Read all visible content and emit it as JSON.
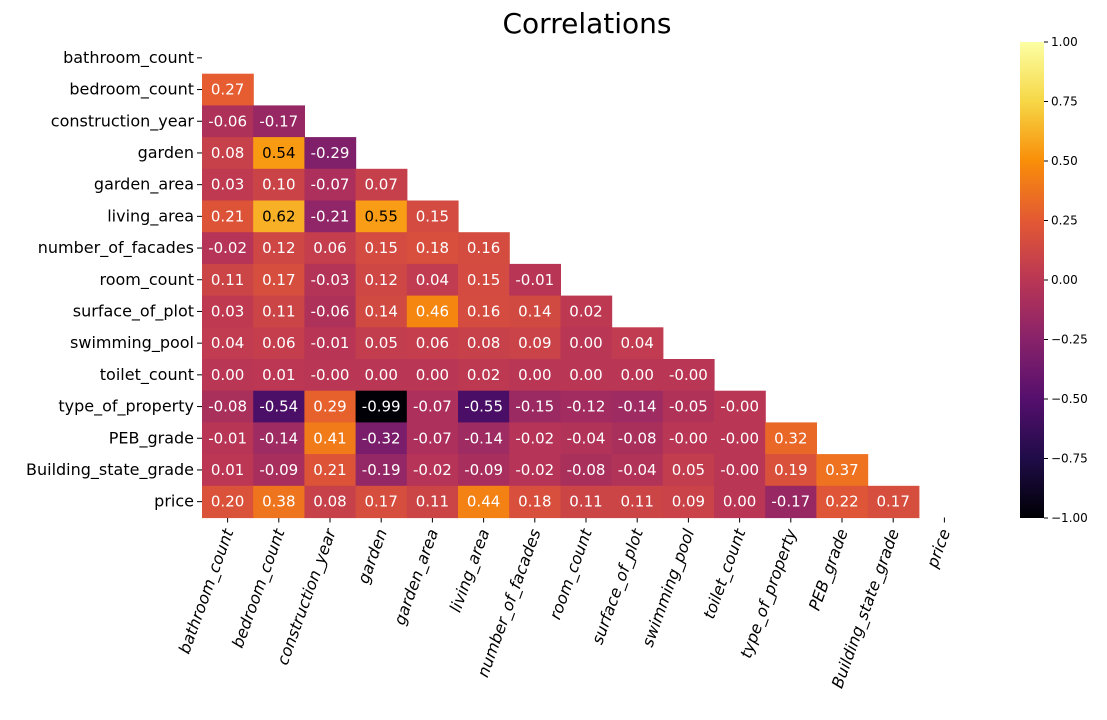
{
  "chart_data": {
    "type": "heatmap",
    "title": "Correlations",
    "labels": [
      "bathroom_count",
      "bedroom_count",
      "construction_year",
      "garden",
      "garden_area",
      "living_area",
      "number_of_facades",
      "room_count",
      "surface_of_plot",
      "swimming_pool",
      "toilet_count",
      "type_of_property",
      "PEB_grade",
      "Building_state_grade",
      "price"
    ],
    "mask": "upper-triangle-and-diagonal",
    "values": [
      [],
      [
        0.27
      ],
      [
        -0.06,
        -0.17
      ],
      [
        0.08,
        0.54,
        -0.29
      ],
      [
        0.03,
        0.1,
        -0.07,
        0.07
      ],
      [
        0.21,
        0.62,
        -0.21,
        0.55,
        0.15
      ],
      [
        -0.02,
        0.12,
        0.06,
        0.15,
        0.18,
        0.16
      ],
      [
        0.11,
        0.17,
        -0.03,
        0.12,
        0.04,
        0.15,
        -0.01
      ],
      [
        0.03,
        0.11,
        -0.06,
        0.14,
        0.46,
        0.16,
        0.14,
        0.02
      ],
      [
        0.04,
        0.06,
        -0.01,
        0.05,
        0.06,
        0.08,
        0.09,
        0.0,
        0.04
      ],
      [
        0.0,
        0.01,
        -0.0,
        0.0,
        0.0,
        0.02,
        0.0,
        0.0,
        0.0,
        -0.0
      ],
      [
        -0.08,
        -0.54,
        0.29,
        -0.99,
        -0.07,
        -0.55,
        -0.15,
        -0.12,
        -0.14,
        -0.05,
        -0.0
      ],
      [
        -0.01,
        -0.14,
        0.41,
        -0.32,
        -0.07,
        -0.14,
        -0.02,
        -0.04,
        -0.08,
        -0.0,
        -0.0,
        0.32
      ],
      [
        0.01,
        -0.09,
        0.21,
        -0.19,
        -0.02,
        -0.09,
        -0.02,
        -0.08,
        -0.04,
        0.05,
        -0.0,
        0.19,
        0.37
      ],
      [
        0.2,
        0.38,
        0.08,
        0.17,
        0.11,
        0.44,
        0.18,
        0.11,
        0.11,
        0.09,
        0.0,
        -0.17,
        0.22,
        0.17
      ]
    ],
    "value_format": "2 decimals",
    "colormap": "inferno",
    "vmin": -1.0,
    "vmax": 1.0,
    "colorbar_ticks": [
      1.0,
      0.75,
      0.5,
      0.25,
      0.0,
      -0.25,
      -0.5,
      -0.75,
      -1.0
    ],
    "colorbar_tick_labels": [
      "1.00",
      "0.75",
      "0.50",
      "0.25",
      "0.00",
      "−0.25",
      "−0.50",
      "−0.75",
      "−1.00"
    ],
    "colorbar_placement": "right",
    "grid": false
  }
}
